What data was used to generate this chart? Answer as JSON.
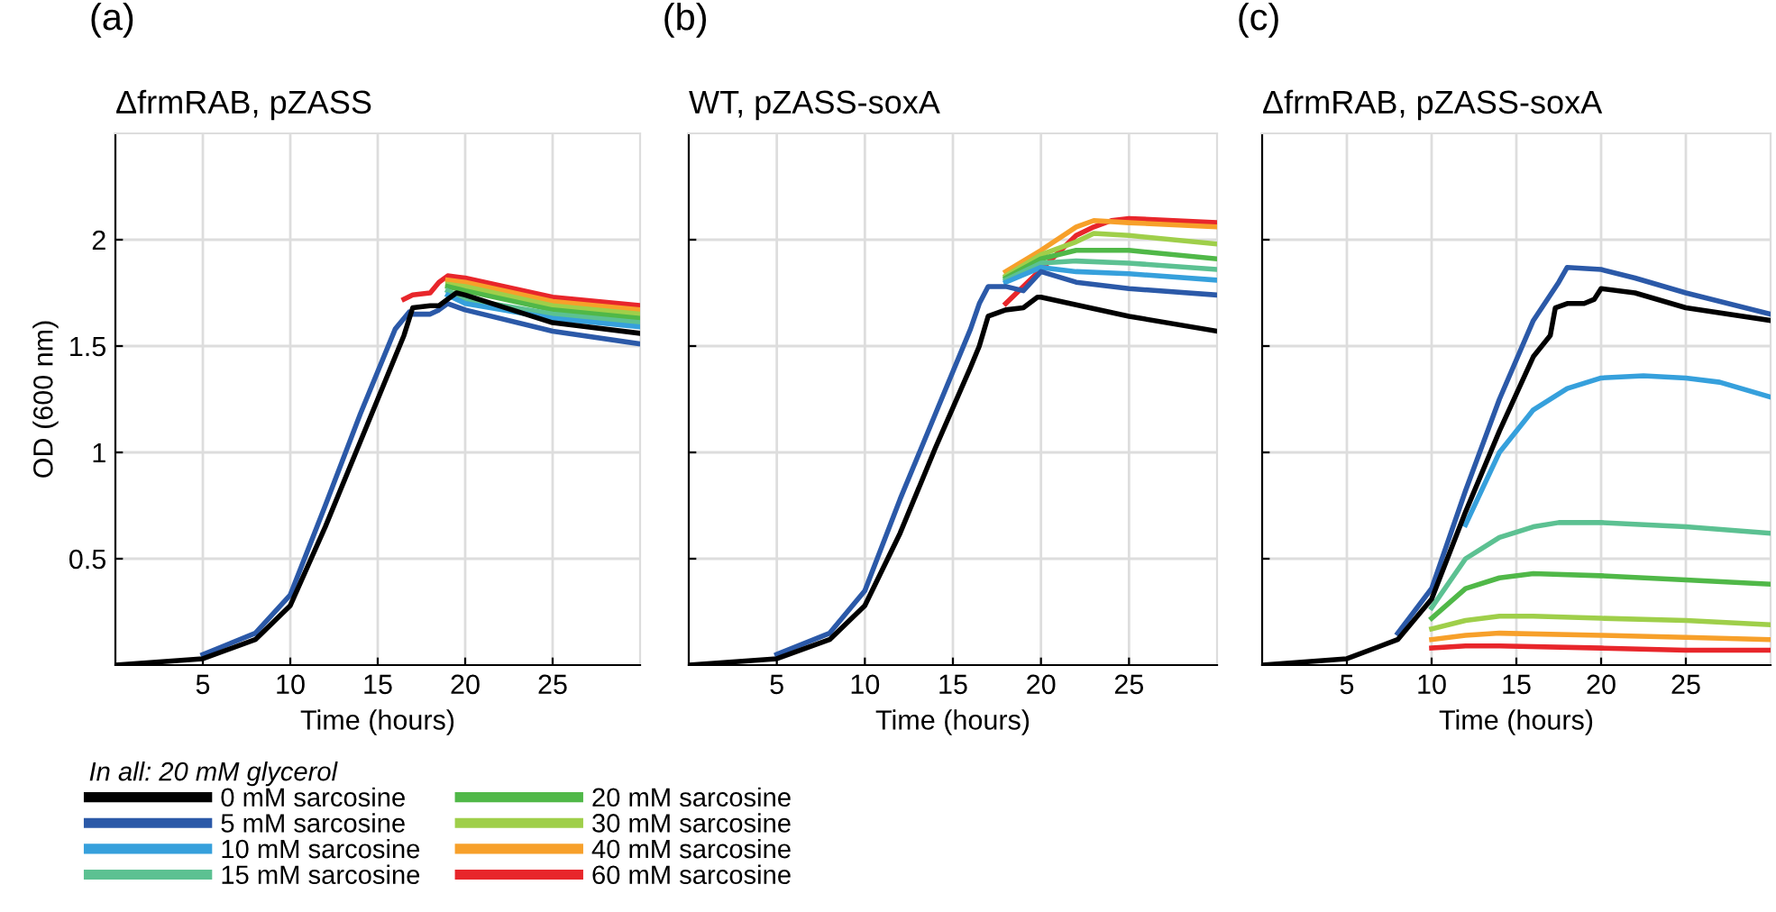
{
  "chart_data": [
    {
      "type": "line",
      "title": "ΔfrmRAB, pZASS",
      "xlabel": "Time (hours)",
      "ylabel": "OD (600 nm)",
      "annotations": [
        "(a)"
      ],
      "legend": "bottom",
      "legend_title": "In all: 20 mM glycerol",
      "grid": true,
      "line_style": "solid",
      "xlim": [
        0,
        30
      ],
      "ylim": [
        0,
        2.5
      ],
      "xticks": [
        5,
        10,
        15,
        20,
        25
      ],
      "yticks": [
        0.5,
        1,
        1.5,
        2
      ],
      "series": [
        {
          "name": "0 mM sarcosine",
          "color": "#000000",
          "x": [
            0,
            5,
            8,
            10,
            12,
            14,
            16,
            16.5,
            17,
            18,
            18.5,
            19,
            19.5,
            20,
            25,
            30
          ],
          "values": [
            0,
            0.03,
            0.12,
            0.28,
            0.65,
            1.05,
            1.45,
            1.55,
            1.68,
            1.69,
            1.69,
            1.72,
            1.75,
            1.74,
            1.61,
            1.56
          ]
        },
        {
          "name": "5 mM sarcosine",
          "color": "#2b59a8",
          "x": [
            5,
            8,
            10,
            12,
            14,
            16,
            16.8,
            17,
            18,
            18.5,
            19,
            20,
            25,
            30
          ],
          "values": [
            0.05,
            0.15,
            0.33,
            0.75,
            1.18,
            1.58,
            1.66,
            1.65,
            1.65,
            1.67,
            1.7,
            1.67,
            1.57,
            1.51
          ]
        },
        {
          "name": "10 mM sarcosine",
          "color": "#36a0dc",
          "x": [
            19,
            20,
            25,
            30
          ],
          "values": [
            1.74,
            1.7,
            1.63,
            1.59
          ]
        },
        {
          "name": "15 mM sarcosine",
          "color": "#5cc192",
          "x": [
            19,
            20,
            25,
            30
          ],
          "values": [
            1.76,
            1.72,
            1.65,
            1.61
          ]
        },
        {
          "name": "20 mM sarcosine",
          "color": "#50b848",
          "x": [
            19,
            20,
            25,
            30
          ],
          "values": [
            1.78,
            1.76,
            1.67,
            1.63
          ]
        },
        {
          "name": "30 mM sarcosine",
          "color": "#9fcf4a",
          "x": [
            19,
            20,
            25,
            30
          ],
          "values": [
            1.79,
            1.78,
            1.69,
            1.65
          ]
        },
        {
          "name": "40 mM sarcosine",
          "color": "#f7a02a",
          "x": [
            19,
            20,
            25,
            30
          ],
          "values": [
            1.81,
            1.8,
            1.71,
            1.67
          ]
        },
        {
          "name": "60 mM sarcosine",
          "color": "#e8262b",
          "x": [
            16.5,
            17,
            18,
            18.5,
            19,
            20,
            25,
            30
          ],
          "values": [
            1.72,
            1.74,
            1.75,
            1.8,
            1.83,
            1.82,
            1.73,
            1.69
          ]
        }
      ]
    },
    {
      "type": "line",
      "title": "WT, pZASS-soxA",
      "xlabel": "Time (hours)",
      "annotations": [
        "(b)"
      ],
      "grid": true,
      "line_style": "solid",
      "tick_labels": "x",
      "xlim": [
        0,
        30
      ],
      "ylim": [
        0,
        2.5
      ],
      "xticks": [
        5,
        10,
        15,
        20,
        25
      ],
      "yticks": [
        0.5,
        1,
        1.5,
        2
      ],
      "series": [
        {
          "color": "#000000",
          "x": [
            0,
            5,
            8,
            10,
            12,
            14,
            16,
            16.5,
            17,
            18,
            19,
            19.8,
            20,
            25,
            30
          ],
          "values": [
            0,
            0.03,
            0.12,
            0.28,
            0.62,
            1.02,
            1.4,
            1.5,
            1.64,
            1.67,
            1.68,
            1.73,
            1.73,
            1.64,
            1.57
          ]
        },
        {
          "color": "#2b59a8",
          "x": [
            5,
            8,
            10,
            12,
            14,
            16,
            16.5,
            17,
            18,
            19,
            20,
            22,
            25,
            30
          ],
          "values": [
            0.05,
            0.15,
            0.35,
            0.78,
            1.18,
            1.58,
            1.7,
            1.78,
            1.78,
            1.76,
            1.85,
            1.8,
            1.77,
            1.74
          ]
        },
        {
          "color": "#36a0dc",
          "x": [
            18,
            20,
            22,
            25,
            30
          ],
          "values": [
            1.8,
            1.87,
            1.85,
            1.84,
            1.81
          ]
        },
        {
          "color": "#5cc192",
          "x": [
            18,
            20,
            22,
            25,
            30
          ],
          "values": [
            1.81,
            1.89,
            1.9,
            1.89,
            1.86
          ]
        },
        {
          "color": "#50b848",
          "x": [
            18,
            20,
            22,
            25,
            30
          ],
          "values": [
            1.82,
            1.91,
            1.95,
            1.95,
            1.91
          ]
        },
        {
          "color": "#9fcf4a",
          "x": [
            18,
            20,
            22,
            23,
            25,
            30
          ],
          "values": [
            1.83,
            1.93,
            1.99,
            2.03,
            2.02,
            1.98
          ]
        },
        {
          "color": "#f7a02a",
          "x": [
            18,
            20,
            22,
            23,
            25,
            30
          ],
          "values": [
            1.85,
            1.95,
            2.06,
            2.09,
            2.08,
            2.06
          ]
        },
        {
          "color": "#e8262b",
          "x": [
            18,
            22,
            23,
            24,
            25,
            30
          ],
          "values": [
            1.7,
            2.02,
            2.06,
            2.09,
            2.1,
            2.08
          ]
        }
      ]
    },
    {
      "type": "line",
      "title": "ΔfrmRAB, pZASS-soxA",
      "xlabel": "Time (hours)",
      "annotations": [
        "(c)"
      ],
      "grid": true,
      "line_style": "solid",
      "tick_labels": "x",
      "xlim": [
        0,
        30
      ],
      "ylim": [
        0,
        2.5
      ],
      "xticks": [
        5,
        10,
        15,
        20,
        25
      ],
      "yticks": [
        0.5,
        1,
        1.5,
        2
      ],
      "series": [
        {
          "color": "#000000",
          "x": [
            0,
            5,
            8,
            10,
            12,
            14,
            16,
            17,
            17.3,
            18,
            19,
            19.6,
            20,
            22,
            25,
            30
          ],
          "values": [
            0,
            0.03,
            0.12,
            0.31,
            0.72,
            1.1,
            1.45,
            1.55,
            1.68,
            1.7,
            1.7,
            1.72,
            1.77,
            1.75,
            1.68,
            1.62
          ]
        },
        {
          "color": "#2b59a8",
          "x": [
            8,
            10,
            12,
            14,
            16,
            17.5,
            18,
            20,
            22,
            25,
            30
          ],
          "values": [
            0.15,
            0.36,
            0.82,
            1.25,
            1.62,
            1.8,
            1.87,
            1.86,
            1.82,
            1.75,
            1.65
          ]
        },
        {
          "color": "#36a0dc",
          "x": [
            12,
            14,
            16,
            18,
            20,
            22.5,
            25,
            27,
            30
          ],
          "values": [
            0.66,
            1.0,
            1.2,
            1.3,
            1.35,
            1.36,
            1.35,
            1.33,
            1.26
          ]
        },
        {
          "color": "#5cc192",
          "x": [
            10,
            12,
            14,
            16,
            17.5,
            20,
            25,
            30
          ],
          "values": [
            0.27,
            0.5,
            0.6,
            0.65,
            0.67,
            0.67,
            0.65,
            0.62
          ]
        },
        {
          "color": "#50b848",
          "x": [
            10,
            12,
            14,
            16,
            20,
            25,
            30
          ],
          "values": [
            0.22,
            0.36,
            0.41,
            0.43,
            0.42,
            0.4,
            0.38
          ]
        },
        {
          "color": "#9fcf4a",
          "x": [
            10,
            12,
            14,
            16,
            20,
            25,
            30
          ],
          "values": [
            0.17,
            0.21,
            0.23,
            0.23,
            0.22,
            0.21,
            0.19
          ]
        },
        {
          "color": "#f7a02a",
          "x": [
            10,
            12,
            14,
            20,
            25,
            30
          ],
          "values": [
            0.12,
            0.14,
            0.15,
            0.14,
            0.13,
            0.12
          ]
        },
        {
          "color": "#e8262b",
          "x": [
            10,
            12,
            14,
            20,
            25,
            30
          ],
          "values": [
            0.08,
            0.09,
            0.09,
            0.08,
            0.07,
            0.07
          ]
        }
      ]
    }
  ]
}
